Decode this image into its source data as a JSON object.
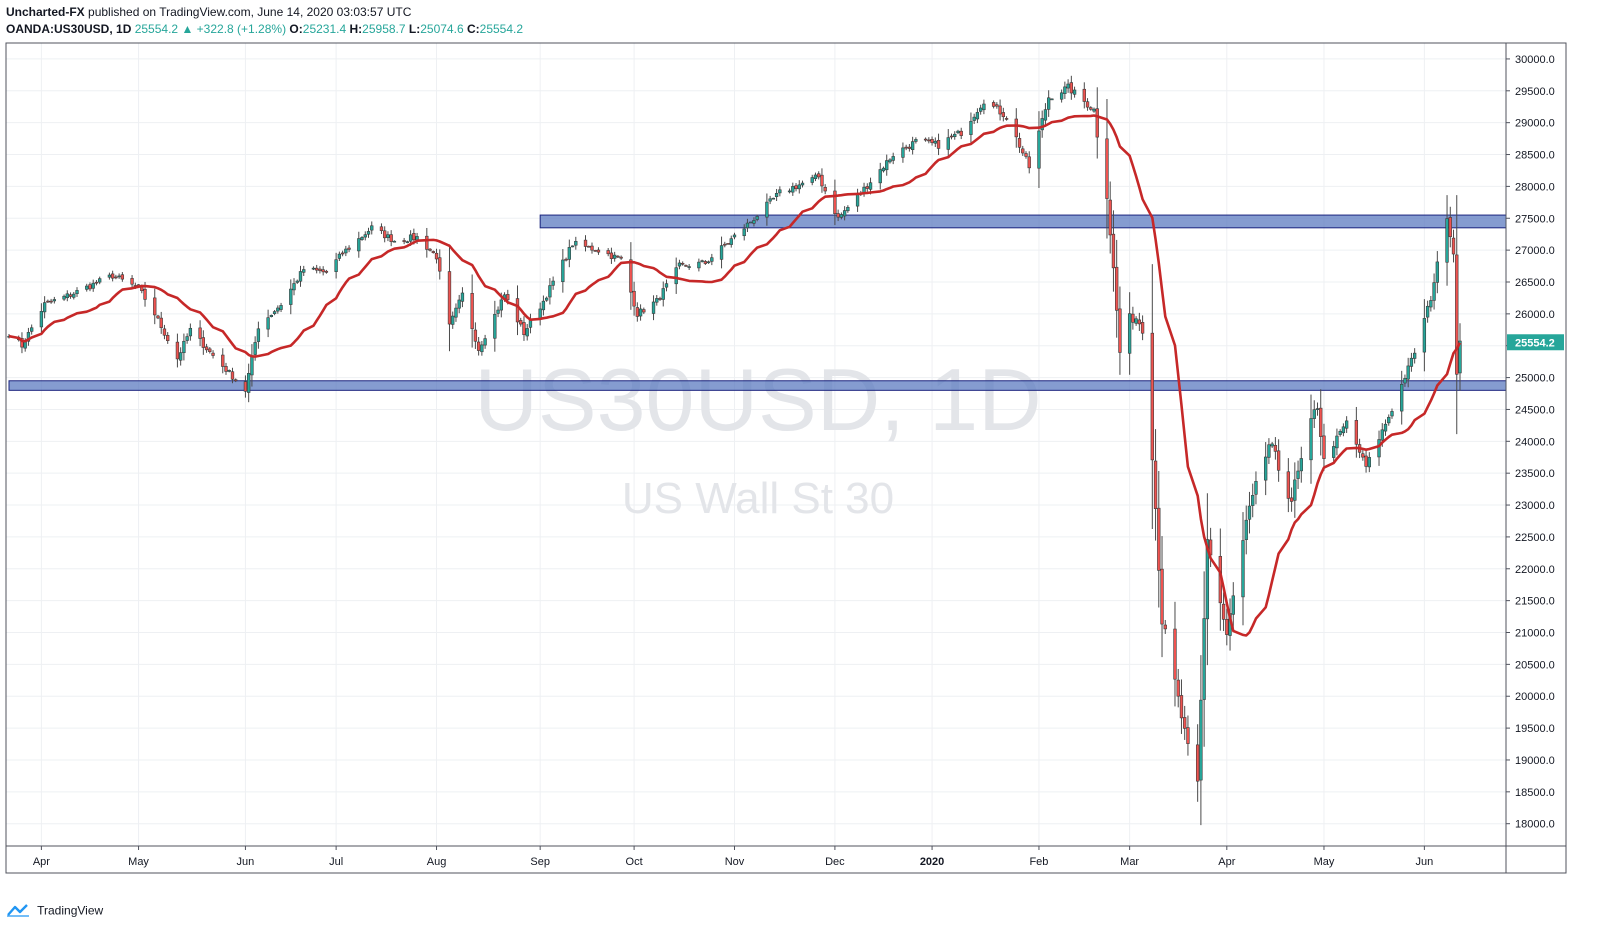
{
  "header": {
    "author": "Uncharted-FX",
    "published_text": "published on TradingView.com, June 14, 2020 03:03:57 UTC",
    "symbol": "OANDA:US30USD, 1D",
    "last": "25554.2",
    "change_arrow": "▲",
    "change": "+322.8 (+1.28%)",
    "open_label": "O:",
    "open": "25231.4",
    "high_label": "H:",
    "high": "25958.7",
    "low_label": "L:",
    "low": "25074.6",
    "close_label": "C:",
    "close": "25554.2"
  },
  "watermark": {
    "symbol": "US30USD, 1D",
    "name": "US Wall St 30"
  },
  "footer": {
    "brand": "TradingView"
  },
  "price_label": "25554.2",
  "colors": {
    "up": "#26a69a",
    "down": "#ef5350",
    "ma": "#c62828",
    "zone_fill": "#5c7bc0",
    "zone_stroke": "#1a237e",
    "grid": "#eef0f3",
    "watermark": "#e3e5e9",
    "price_label_bg": "#26a69a"
  },
  "chart_data": {
    "type": "candlestick",
    "ylim": [
      17650,
      30250
    ],
    "yticks": [
      18000,
      18500,
      19000,
      19500,
      20000,
      20500,
      21000,
      21500,
      22000,
      22500,
      23000,
      23500,
      24000,
      24500,
      25000,
      25500,
      26000,
      26500,
      27000,
      27500,
      28000,
      28500,
      29000,
      29500,
      30000
    ],
    "ytick_labels": [
      "18000.0",
      "18500.0",
      "19000.0",
      "19500.0",
      "20000.0",
      "20500.0",
      "21000.0",
      "21500.0",
      "22000.0",
      "22500.0",
      "23000.0",
      "23500.0",
      "24000.0",
      "24500.0",
      "25000.0",
      "25500.0",
      "26000.0",
      "26500.0",
      "27000.0",
      "27500.0",
      "28000.0",
      "28500.0",
      "29000.0",
      "29500.0",
      "30000.0"
    ],
    "xticks": [
      {
        "label": "Apr",
        "date": "2019-04-01"
      },
      {
        "label": "May",
        "date": "2019-05-01"
      },
      {
        "label": "Jun",
        "date": "2019-06-03"
      },
      {
        "label": "Jul",
        "date": "2019-07-01"
      },
      {
        "label": "Aug",
        "date": "2019-08-01"
      },
      {
        "label": "Sep",
        "date": "2019-09-02"
      },
      {
        "label": "Oct",
        "date": "2019-10-01"
      },
      {
        "label": "Nov",
        "date": "2019-11-01"
      },
      {
        "label": "Dec",
        "date": "2019-12-02"
      },
      {
        "label": "2020",
        "date": "2020-01-01"
      },
      {
        "label": "Feb",
        "date": "2020-02-03"
      },
      {
        "label": "Mar",
        "date": "2020-03-02"
      },
      {
        "label": "Apr",
        "date": "2020-04-01"
      },
      {
        "label": "May",
        "date": "2020-05-01"
      },
      {
        "label": "Jun",
        "date": "2020-06-01"
      }
    ],
    "date_range": [
      "2019-03-22",
      "2020-06-12"
    ],
    "zones": [
      {
        "from": "2019-09-02",
        "to": "2020-06-19",
        "low": 27350,
        "high": 27550
      },
      {
        "from": "2019-03-22",
        "to": "2020-06-19",
        "low": 24800,
        "high": 24950
      }
    ],
    "path": [
      [
        "2019-03-22",
        25700
      ],
      [
        "2019-03-26",
        25500
      ],
      [
        "2019-04-02",
        26150
      ],
      [
        "2019-04-10",
        26300
      ],
      [
        "2019-04-23",
        26600
      ],
      [
        "2019-05-01",
        26400
      ],
      [
        "2019-05-06",
        26000
      ],
      [
        "2019-05-13",
        25300
      ],
      [
        "2019-05-17",
        25750
      ],
      [
        "2019-05-23",
        25400
      ],
      [
        "2019-06-03",
        24800
      ],
      [
        "2019-06-07",
        25800
      ],
      [
        "2019-06-14",
        26150
      ],
      [
        "2019-06-21",
        26700
      ],
      [
        "2019-06-28",
        26650
      ],
      [
        "2019-07-03",
        26950
      ],
      [
        "2019-07-12",
        27350
      ],
      [
        "2019-07-19",
        27150
      ],
      [
        "2019-07-26",
        27200
      ],
      [
        "2019-08-01",
        26900
      ],
      [
        "2019-08-05",
        25800
      ],
      [
        "2019-08-09",
        26300
      ],
      [
        "2019-08-14",
        25450
      ],
      [
        "2019-08-22",
        26300
      ],
      [
        "2019-08-28",
        25700
      ],
      [
        "2019-09-03",
        26200
      ],
      [
        "2019-09-12",
        27100
      ],
      [
        "2019-09-20",
        27000
      ],
      [
        "2019-09-27",
        26850
      ],
      [
        "2019-10-02",
        26000
      ],
      [
        "2019-10-08",
        26200
      ],
      [
        "2019-10-15",
        26750
      ],
      [
        "2019-10-23",
        26800
      ],
      [
        "2019-11-04",
        27350
      ],
      [
        "2019-11-15",
        27900
      ],
      [
        "2019-11-27",
        28150
      ],
      [
        "2019-12-03",
        27500
      ],
      [
        "2019-12-10",
        27900
      ],
      [
        "2019-12-20",
        28500
      ],
      [
        "2019-12-27",
        28700
      ],
      [
        "2020-01-03",
        28650
      ],
      [
        "2020-01-10",
        28850
      ],
      [
        "2020-01-17",
        29350
      ],
      [
        "2020-01-24",
        29100
      ],
      [
        "2020-01-31",
        28300
      ],
      [
        "2020-02-06",
        29400
      ],
      [
        "2020-02-12",
        29550
      ],
      [
        "2020-02-20",
        29200
      ],
      [
        "2020-02-24",
        27950
      ],
      [
        "2020-02-28",
        25400
      ],
      [
        "2020-03-03",
        26000
      ],
      [
        "2020-03-06",
        25850
      ],
      [
        "2020-03-09",
        23850
      ],
      [
        "2020-03-12",
        21200
      ],
      [
        "2020-03-16",
        20200
      ],
      [
        "2020-03-20",
        19150
      ],
      [
        "2020-03-23",
        18600
      ],
      [
        "2020-03-26",
        22500
      ],
      [
        "2020-04-01",
        20950
      ],
      [
        "2020-04-07",
        22700
      ],
      [
        "2020-04-14",
        23950
      ],
      [
        "2020-04-21",
        23100
      ],
      [
        "2020-04-29",
        24600
      ],
      [
        "2020-05-01",
        23700
      ],
      [
        "2020-05-08",
        24300
      ],
      [
        "2020-05-14",
        23600
      ],
      [
        "2020-05-22",
        24500
      ],
      [
        "2020-05-29",
        25400
      ],
      [
        "2020-06-03",
        26250
      ],
      [
        "2020-06-08",
        27550
      ],
      [
        "2020-06-10",
        26950
      ],
      [
        "2020-06-11",
        25100
      ],
      [
        "2020-06-12",
        25554
      ]
    ],
    "ma_period": 20
  }
}
